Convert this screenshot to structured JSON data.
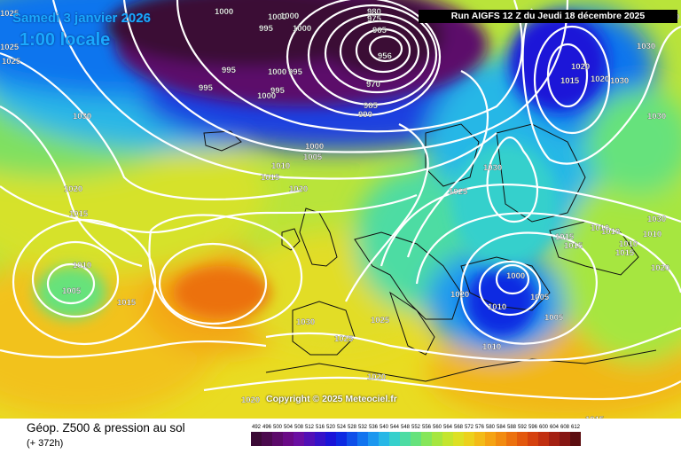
{
  "map": {
    "date": "Samedi 3 janvier 2026",
    "time": "1:00 locale",
    "run": "Run AIGFS 12 Z du Jeudi 18 décembre 2025",
    "copyright": "Copyright © 2025 Meteociel.fr",
    "product": "Géop. Z500 & pression au sol",
    "forecast_offset": "(+ 372h)"
  },
  "isobar_labels": [
    {
      "id": "a1",
      "text": "1025"
    },
    {
      "id": "a2",
      "text": "1025"
    },
    {
      "id": "a3",
      "text": "1025"
    },
    {
      "id": "a4",
      "text": "1000"
    },
    {
      "id": "a5",
      "text": "1000"
    },
    {
      "id": "a6",
      "text": "995"
    },
    {
      "id": "a7",
      "text": "1000"
    },
    {
      "id": "a8",
      "text": "1000"
    },
    {
      "id": "a9",
      "text": "995"
    },
    {
      "id": "a10",
      "text": "995"
    },
    {
      "id": "a11",
      "text": "1000"
    },
    {
      "id": "a12",
      "text": "995"
    },
    {
      "id": "a13",
      "text": "1000"
    },
    {
      "id": "a14",
      "text": "995"
    },
    {
      "id": "a15",
      "text": "980"
    },
    {
      "id": "a16",
      "text": "975"
    },
    {
      "id": "a17",
      "text": "965"
    },
    {
      "id": "a18",
      "text": "956"
    },
    {
      "id": "a19",
      "text": "970"
    },
    {
      "id": "a20",
      "text": "985"
    },
    {
      "id": "a21",
      "text": "990"
    },
    {
      "id": "a22",
      "text": "1030"
    },
    {
      "id": "a23",
      "text": "1000"
    },
    {
      "id": "a24",
      "text": "1005"
    },
    {
      "id": "a25",
      "text": "1010"
    },
    {
      "id": "a26",
      "text": "1015"
    },
    {
      "id": "a27",
      "text": "1020"
    },
    {
      "id": "a28",
      "text": "1020"
    },
    {
      "id": "a29",
      "text": "1015"
    },
    {
      "id": "a30",
      "text": "1010"
    },
    {
      "id": "a31",
      "text": "1005"
    },
    {
      "id": "a32",
      "text": "1015"
    },
    {
      "id": "a33",
      "text": "1030"
    },
    {
      "id": "a34",
      "text": "1025"
    },
    {
      "id": "a35",
      "text": "1025"
    },
    {
      "id": "a36",
      "text": "1020"
    },
    {
      "id": "a37",
      "text": "1020"
    },
    {
      "id": "a38",
      "text": "1030"
    },
    {
      "id": "a39",
      "text": "1025"
    },
    {
      "id": "a40",
      "text": "1020"
    },
    {
      "id": "a41",
      "text": "1010"
    },
    {
      "id": "a42",
      "text": "1000"
    },
    {
      "id": "a43",
      "text": "1005"
    },
    {
      "id": "a44",
      "text": "1010"
    },
    {
      "id": "a45",
      "text": "1005"
    },
    {
      "id": "a46",
      "text": "1020"
    },
    {
      "id": "a47",
      "text": "1015"
    },
    {
      "id": "a48",
      "text": "1010"
    },
    {
      "id": "a49",
      "text": "1010"
    },
    {
      "id": "a50",
      "text": "1015"
    },
    {
      "id": "a51",
      "text": "1015"
    },
    {
      "id": "a52",
      "text": "1010"
    },
    {
      "id": "a53",
      "text": "1010"
    },
    {
      "id": "a54",
      "text": "1020"
    },
    {
      "id": "a55",
      "text": "1015"
    },
    {
      "id": "a56",
      "text": "1030"
    },
    {
      "id": "a57",
      "text": "1020"
    },
    {
      "id": "a58",
      "text": "1015"
    },
    {
      "id": "a59",
      "text": "1025"
    },
    {
      "id": "a60",
      "text": "1030"
    },
    {
      "id": "a61",
      "text": "1030"
    },
    {
      "id": "a62",
      "text": "1030"
    },
    {
      "id": "a63",
      "text": "1030"
    }
  ],
  "legend": {
    "values": [
      "492",
      "496",
      "500",
      "504",
      "508",
      "512",
      "516",
      "520",
      "524",
      "528",
      "532",
      "536",
      "540",
      "544",
      "548",
      "552",
      "556",
      "560",
      "564",
      "568",
      "572",
      "576",
      "580",
      "584",
      "588",
      "592",
      "596",
      "600",
      "604",
      "608",
      "612"
    ],
    "colors": [
      "#3b0a36",
      "#4b0a4e",
      "#5c0a6a",
      "#6a0a86",
      "#6b0fa2",
      "#5210b6",
      "#3612c8",
      "#1a14d8",
      "#0d2ae2",
      "#0f4fe9",
      "#1274ef",
      "#1c97ef",
      "#27b7e6",
      "#36d0cc",
      "#4ddca3",
      "#66e27c",
      "#86e65a",
      "#a6e63f",
      "#c4e52e",
      "#dde024",
      "#ecd11d",
      "#f3bb18",
      "#f5a313",
      "#f28b10",
      "#ec710e",
      "#e3580d",
      "#d5410e",
      "#c12f10",
      "#a42012",
      "#861613",
      "#5c0d10"
    ]
  }
}
